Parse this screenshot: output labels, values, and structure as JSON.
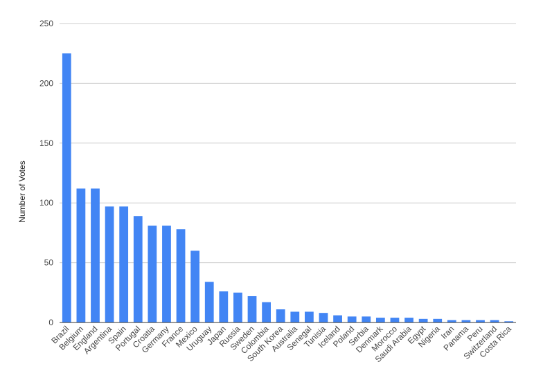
{
  "chart_data": {
    "type": "bar",
    "title": "",
    "xlabel": "",
    "ylabel": "Number of Votes",
    "ylim": [
      0,
      250
    ],
    "yticks": [
      "0",
      "50",
      "100",
      "150",
      "200",
      "250"
    ],
    "grid": true,
    "legend": "none",
    "bar_color": "#4285f4",
    "categories": [
      "Brazil",
      "Belgium",
      "England",
      "Argentina",
      "Spain",
      "Portugal",
      "Croatia",
      "Germany",
      "France",
      "Mexico",
      "Uruguay",
      "Japan",
      "Russia",
      "Sweden",
      "Colombia",
      "South Korea",
      "Australia",
      "Senegal",
      "Tunisia",
      "Iceland",
      "Poland",
      "Serbia",
      "Denmark",
      "Morocco",
      "Saudi Arabia",
      "Egypt",
      "Nigeria",
      "Iran",
      "Panama",
      "Peru",
      "Switzerland",
      "Costa Rica"
    ],
    "values": [
      225,
      112,
      112,
      97,
      97,
      89,
      81,
      81,
      78,
      60,
      34,
      26,
      25,
      22,
      17,
      11,
      9,
      9,
      8,
      6,
      5,
      5,
      4,
      4,
      4,
      3,
      3,
      2,
      2,
      2,
      2,
      1
    ]
  }
}
